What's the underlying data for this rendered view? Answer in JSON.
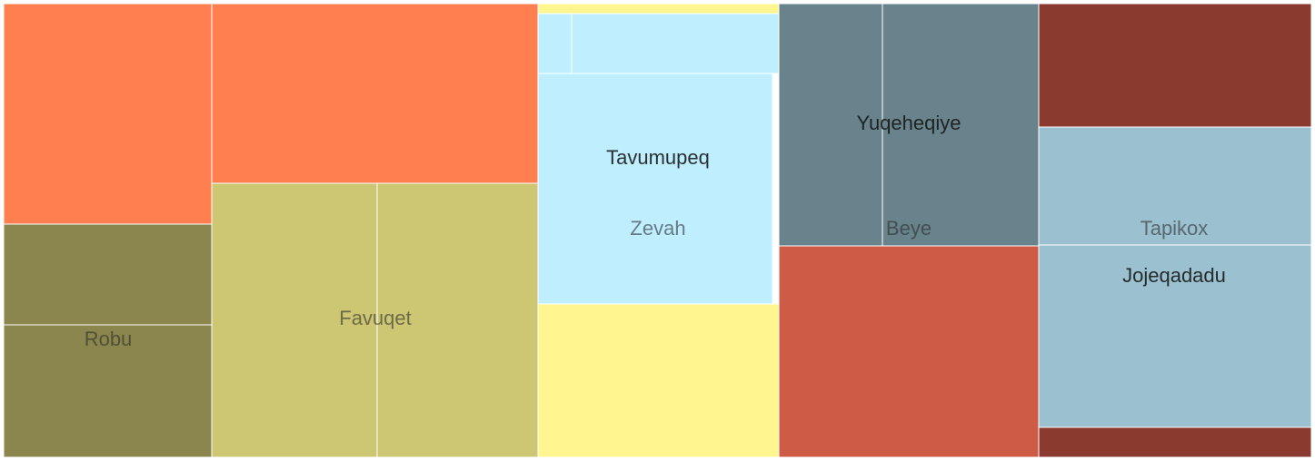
{
  "chart_data": {
    "type": "treemap",
    "title": "",
    "groups": [
      {
        "name": "Robu",
        "color": "#ff7f50",
        "label_dark": false,
        "children": [
          {
            "name": "",
            "value": 56000,
            "color": "#ff7f50"
          },
          {
            "name": "",
            "value": 24000,
            "color": "#8b864e"
          },
          {
            "name": "",
            "value": 33000,
            "color": "#8b864e"
          }
        ]
      },
      {
        "name": "Favuqet",
        "color": "#cdc673",
        "label_dark": false,
        "children": [
          {
            "name": "",
            "value": 71000,
            "color": "#ff7f50"
          },
          {
            "name": "",
            "value": 54000,
            "color": "#cdc673"
          },
          {
            "name": "",
            "value": 53000,
            "color": "#cdc673"
          }
        ]
      },
      {
        "name": "Zevah",
        "color": "#bfefff",
        "label_dark": false,
        "children": [
          {
            "name": "",
            "value": 3000,
            "color": "#fff68f"
          },
          {
            "name": "",
            "value": 2400,
            "color": "#bfefff"
          },
          {
            "name": "",
            "value": 15000,
            "color": "#bfefff"
          },
          {
            "name": "Tavumupeq",
            "value": 67000,
            "color": "#bfefff"
          },
          {
            "name": "",
            "value": 44000,
            "color": "#fff68f"
          }
        ]
      },
      {
        "name": "Beye",
        "color": "#68838b",
        "label_dark": false,
        "children": [
          {
            "name": "Yuqeheqiye",
            "value": 76000,
            "color": "#68838b"
          },
          {
            "name": "",
            "value": 66000,
            "color": "#cd5b45"
          }
        ]
      },
      {
        "name": "Tapikox",
        "color": "#9bc0cf",
        "label_dark": false,
        "children": [
          {
            "name": "",
            "value": 40000,
            "color": "#8b3a2f"
          },
          {
            "name": "",
            "value": 38000,
            "color": "#9bc0cf"
          },
          {
            "name": "Jojeqadadu",
            "value": 59000,
            "color": "#9bc0cf"
          },
          {
            "name": "",
            "value": 10000,
            "color": "#8b3a2f"
          }
        ]
      }
    ]
  }
}
